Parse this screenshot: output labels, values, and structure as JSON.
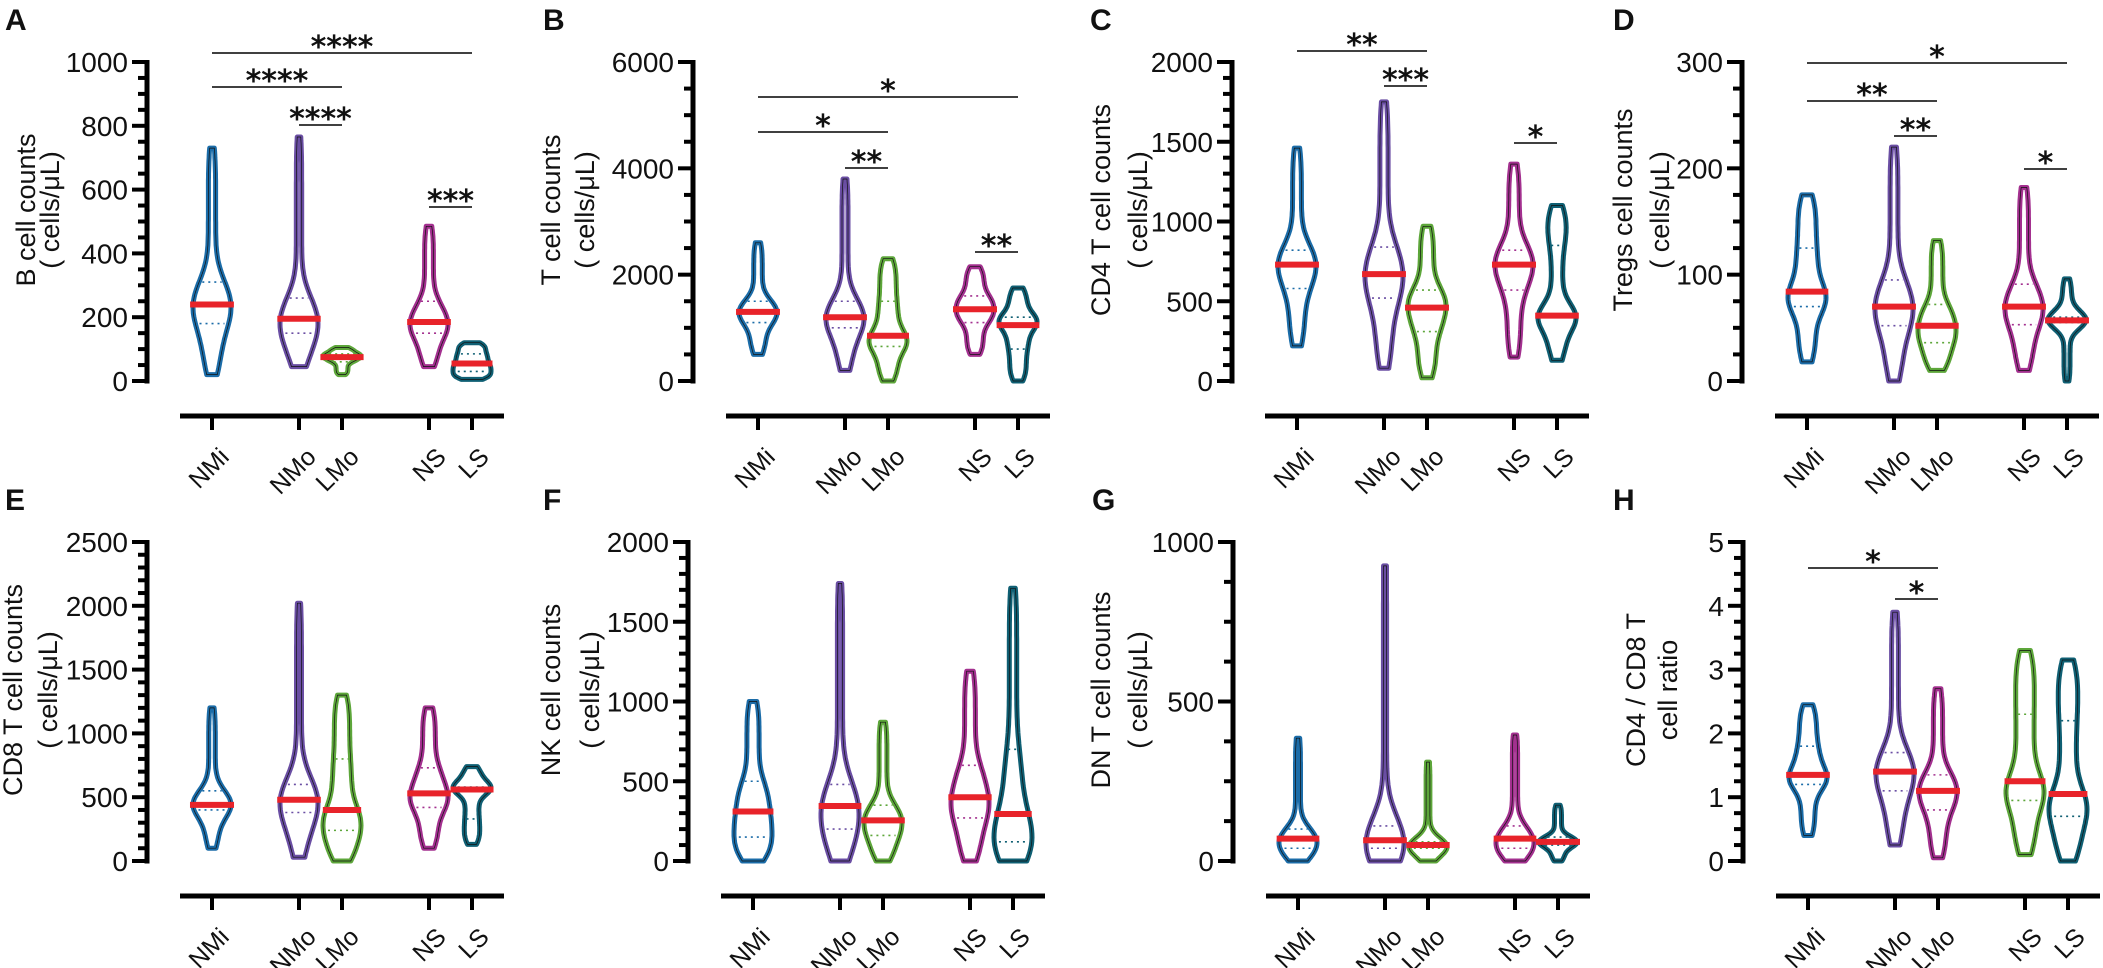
{
  "median_color": "#e8232a",
  "chart_data": [
    {
      "panel": "A",
      "type": "violin",
      "ylabel": [
        "B cell counts",
        "( cells/μL)"
      ],
      "ylim": [
        0,
        1000
      ],
      "yticks": [
        0,
        200,
        400,
        600,
        800,
        1000
      ],
      "ytick_labels": [
        "0",
        "200",
        "400",
        "600",
        "800",
        "1000"
      ],
      "minor_step": 50,
      "groups": [
        {
          "name": "NMi",
          "color": "#1b6ca8",
          "min": 20,
          "q1": 180,
          "median": 240,
          "q3": 310,
          "max": 730
        },
        {
          "name": "NMo",
          "color": "#6a4ea3",
          "min": 45,
          "q1": 150,
          "median": 195,
          "q3": 260,
          "max": 765
        },
        {
          "name": "LMo",
          "color": "#5da63a",
          "min": 20,
          "q1": 60,
          "median": 75,
          "q3": 85,
          "max": 105
        },
        {
          "name": "NS",
          "color": "#a3308f",
          "min": 45,
          "q1": 150,
          "median": 185,
          "q3": 250,
          "max": 485
        },
        {
          "name": "LS",
          "color": "#0f5f73",
          "min": 5,
          "q1": 30,
          "median": 55,
          "q3": 85,
          "max": 120
        }
      ],
      "comparisons": [
        {
          "from": "NMi",
          "to": "LS",
          "label": "****"
        },
        {
          "from": "NMi",
          "to": "LMo",
          "label": "****"
        },
        {
          "from": "NMo",
          "to": "LMo",
          "label": "****"
        },
        {
          "from": "NS",
          "to": "LS",
          "label": "***"
        }
      ]
    },
    {
      "panel": "B",
      "type": "violin",
      "ylabel": [
        "T cell counts",
        "( cells/μL)"
      ],
      "ylim": [
        0,
        6000
      ],
      "yticks": [
        0,
        2000,
        4000,
        6000
      ],
      "ytick_labels": [
        "0",
        "2000",
        "4000",
        "6000"
      ],
      "minor_step": 500,
      "groups": [
        {
          "name": "NMi",
          "color": "#1b6ca8",
          "min": 500,
          "q1": 1100,
          "median": 1300,
          "q3": 1500,
          "max": 2600
        },
        {
          "name": "NMo",
          "color": "#6a4ea3",
          "min": 200,
          "q1": 1000,
          "median": 1200,
          "q3": 1500,
          "max": 3800
        },
        {
          "name": "LMo",
          "color": "#5da63a",
          "min": 0,
          "q1": 650,
          "median": 850,
          "q3": 1500,
          "max": 2300
        },
        {
          "name": "NS",
          "color": "#a3308f",
          "min": 500,
          "q1": 1100,
          "median": 1350,
          "q3": 1600,
          "max": 2150
        },
        {
          "name": "LS",
          "color": "#0f5f73",
          "min": 0,
          "q1": 600,
          "median": 1050,
          "q3": 1200,
          "max": 1750
        }
      ],
      "comparisons": [
        {
          "from": "NMi",
          "to": "LS",
          "label": "*"
        },
        {
          "from": "NMi",
          "to": "LMo",
          "label": "*"
        },
        {
          "from": "NMo",
          "to": "LMo",
          "label": "**"
        },
        {
          "from": "NS",
          "to": "LS",
          "label": "**"
        }
      ]
    },
    {
      "panel": "C",
      "type": "violin",
      "ylabel": [
        "CD4 T cell counts",
        "( cells/μL)"
      ],
      "ylim": [
        0,
        2000
      ],
      "yticks": [
        0,
        500,
        1000,
        1500,
        2000
      ],
      "ytick_labels": [
        "0",
        "500",
        "1000",
        "1500",
        "2000"
      ],
      "minor_step": 100,
      "groups": [
        {
          "name": "NMi",
          "color": "#1b6ca8",
          "min": 220,
          "q1": 580,
          "median": 730,
          "q3": 820,
          "max": 1460
        },
        {
          "name": "NMo",
          "color": "#6a4ea3",
          "min": 80,
          "q1": 520,
          "median": 670,
          "q3": 840,
          "max": 1750
        },
        {
          "name": "LMo",
          "color": "#5da63a",
          "min": 20,
          "q1": 310,
          "median": 460,
          "q3": 570,
          "max": 970
        },
        {
          "name": "NS",
          "color": "#a3308f",
          "min": 150,
          "q1": 570,
          "median": 730,
          "q3": 820,
          "max": 1360
        },
        {
          "name": "LS",
          "color": "#0f5f73",
          "min": 130,
          "q1": 400,
          "median": 410,
          "q3": 850,
          "max": 1100
        }
      ],
      "comparisons": [
        {
          "from": "NMi",
          "to": "LMo",
          "label": "**"
        },
        {
          "from": "NMo",
          "to": "LMo",
          "label": "***"
        },
        {
          "from": "NS",
          "to": "LS",
          "label": "*"
        }
      ]
    },
    {
      "panel": "D",
      "type": "violin",
      "ylabel": [
        "Tregs cell counts",
        "( cells/μL)"
      ],
      "ylim": [
        0,
        300
      ],
      "yticks": [
        0,
        100,
        200,
        300
      ],
      "ytick_labels": [
        "0",
        "100",
        "200",
        "300"
      ],
      "minor_step": 25,
      "groups": [
        {
          "name": "NMi",
          "color": "#1b6ca8",
          "min": 18,
          "q1": 70,
          "median": 84,
          "q3": 125,
          "max": 175
        },
        {
          "name": "NMo",
          "color": "#6a4ea3",
          "min": 0,
          "q1": 52,
          "median": 70,
          "q3": 95,
          "max": 220
        },
        {
          "name": "LMo",
          "color": "#5da63a",
          "min": 10,
          "q1": 36,
          "median": 52,
          "q3": 72,
          "max": 132
        },
        {
          "name": "NS",
          "color": "#a3308f",
          "min": 10,
          "q1": 53,
          "median": 70,
          "q3": 91,
          "max": 182
        },
        {
          "name": "LS",
          "color": "#0f5f73",
          "min": 0,
          "q1": 55,
          "median": 57,
          "q3": 60,
          "max": 96
        }
      ],
      "comparisons": [
        {
          "from": "NMi",
          "to": "LS",
          "label": "*"
        },
        {
          "from": "NMi",
          "to": "LMo",
          "label": "**"
        },
        {
          "from": "NMo",
          "to": "LMo",
          "label": "**"
        },
        {
          "from": "NS",
          "to": "LS",
          "label": "*"
        }
      ]
    },
    {
      "panel": "E",
      "type": "violin",
      "ylabel": [
        "CD8 T cell counts",
        "( cells/μL)"
      ],
      "ylim": [
        0,
        2500
      ],
      "yticks": [
        0,
        500,
        1000,
        1500,
        2000,
        2500
      ],
      "ytick_labels": [
        "0",
        "500",
        "1000",
        "1500",
        "2000",
        "2500"
      ],
      "minor_step": 100,
      "groups": [
        {
          "name": "NMi",
          "color": "#1b6ca8",
          "min": 100,
          "q1": 400,
          "median": 440,
          "q3": 550,
          "max": 1200
        },
        {
          "name": "NMo",
          "color": "#6a4ea3",
          "min": 30,
          "q1": 380,
          "median": 480,
          "q3": 600,
          "max": 2020
        },
        {
          "name": "LMo",
          "color": "#5da63a",
          "min": 0,
          "q1": 240,
          "median": 400,
          "q3": 800,
          "max": 1300
        },
        {
          "name": "NS",
          "color": "#a3308f",
          "min": 100,
          "q1": 420,
          "median": 530,
          "q3": 730,
          "max": 1200
        },
        {
          "name": "LS",
          "color": "#0f5f73",
          "min": 130,
          "q1": 330,
          "median": 560,
          "q3": 580,
          "max": 740
        }
      ],
      "comparisons": []
    },
    {
      "panel": "F",
      "type": "violin",
      "ylabel": [
        "NK cell counts",
        "( cells/μL)"
      ],
      "ylim": [
        0,
        2000
      ],
      "yticks": [
        0,
        500,
        1000,
        1500,
        2000
      ],
      "ytick_labels": [
        "0",
        "500",
        "1000",
        "1500",
        "2000"
      ],
      "minor_step": 100,
      "groups": [
        {
          "name": "NMi",
          "color": "#1b6ca8",
          "min": 0,
          "q1": 150,
          "median": 310,
          "q3": 500,
          "max": 1000
        },
        {
          "name": "NMo",
          "color": "#6a4ea3",
          "min": 0,
          "q1": 200,
          "median": 345,
          "q3": 480,
          "max": 1740
        },
        {
          "name": "LMo",
          "color": "#5da63a",
          "min": 0,
          "q1": 160,
          "median": 255,
          "q3": 350,
          "max": 870
        },
        {
          "name": "NS",
          "color": "#a3308f",
          "min": 0,
          "q1": 270,
          "median": 400,
          "q3": 600,
          "max": 1190
        },
        {
          "name": "LS",
          "color": "#0f5f73",
          "min": 0,
          "q1": 120,
          "median": 295,
          "q3": 700,
          "max": 1710
        }
      ],
      "comparisons": []
    },
    {
      "panel": "G",
      "type": "violin",
      "ylabel": [
        "DN T cell counts",
        "( cells/μL)"
      ],
      "ylim": [
        0,
        1000
      ],
      "yticks": [
        0,
        500,
        1000
      ],
      "ytick_labels": [
        "0",
        "500",
        "1000"
      ],
      "minor_step": 125,
      "groups": [
        {
          "name": "NMi",
          "color": "#1b6ca8",
          "min": 0,
          "q1": 40,
          "median": 70,
          "q3": 100,
          "max": 385
        },
        {
          "name": "NMo",
          "color": "#6a4ea3",
          "min": 0,
          "q1": 40,
          "median": 65,
          "q3": 110,
          "max": 925
        },
        {
          "name": "LMo",
          "color": "#5da63a",
          "min": 0,
          "q1": 40,
          "median": 50,
          "q3": 60,
          "max": 310
        },
        {
          "name": "NS",
          "color": "#a3308f",
          "min": 0,
          "q1": 40,
          "median": 70,
          "q3": 110,
          "max": 395
        },
        {
          "name": "LS",
          "color": "#0f5f73",
          "min": 0,
          "q1": 50,
          "median": 60,
          "q3": 75,
          "max": 175
        }
      ],
      "comparisons": []
    },
    {
      "panel": "H",
      "type": "violin",
      "ylabel": [
        "CD4 / CD8 T",
        "cell ratio"
      ],
      "ylim": [
        0,
        5
      ],
      "yticks": [
        0,
        1,
        2,
        3,
        4,
        5
      ],
      "ytick_labels": [
        "0",
        "1",
        "2",
        "3",
        "4",
        "5"
      ],
      "minor_step": 0.25,
      "groups": [
        {
          "name": "NMi",
          "color": "#1b6ca8",
          "min": 0.4,
          "q1": 1.2,
          "median": 1.35,
          "q3": 1.8,
          "max": 2.45
        },
        {
          "name": "NMo",
          "color": "#6a4ea3",
          "min": 0.25,
          "q1": 1.1,
          "median": 1.4,
          "q3": 1.7,
          "max": 3.9
        },
        {
          "name": "LMo",
          "color": "#a3308f",
          "min": 0.05,
          "q1": 0.8,
          "median": 1.1,
          "q3": 1.35,
          "max": 2.7
        },
        {
          "name": "NS",
          "color": "#5da63a",
          "min": 0.1,
          "q1": 0.95,
          "median": 1.25,
          "q3": 2.3,
          "max": 3.3
        },
        {
          "name": "LS",
          "color": "#0f5f73",
          "min": 0,
          "q1": 0.7,
          "median": 1.05,
          "q3": 2.2,
          "max": 3.15
        }
      ],
      "comparisons": [
        {
          "from": "NMi",
          "to": "LMo",
          "label": "*"
        },
        {
          "from": "NMo",
          "to": "LMo",
          "label": "*"
        }
      ]
    }
  ]
}
